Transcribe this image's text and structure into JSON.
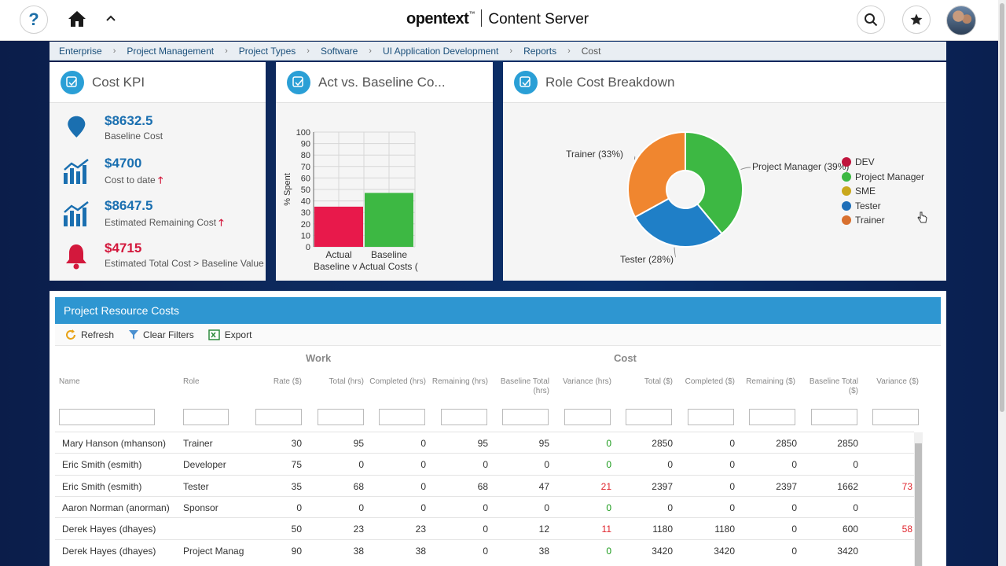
{
  "header": {
    "brand_name": "opentext",
    "brand_tm": "™",
    "product": "Content Server",
    "help_label": "?"
  },
  "breadcrumb": [
    "Enterprise",
    "Project Management",
    "Project Types",
    "Software",
    "UI Application Development",
    "Reports",
    "Cost"
  ],
  "cost_kpi": {
    "title": "Cost KPI",
    "items": [
      {
        "value": "$8632.5",
        "label": "Baseline Cost",
        "icon": "map-pin-icon"
      },
      {
        "value": "$4700",
        "label": "Cost to date",
        "icon": "bar-chart-icon"
      },
      {
        "value": "$8647.5",
        "label": "Estimated Remaining Cost",
        "icon": "bar-chart-icon"
      },
      {
        "value": "$4715",
        "label": "Estimated Total Cost > Baseline Value",
        "icon": "bell-icon"
      }
    ]
  },
  "act_vs_baseline": {
    "title": "Act vs. Baseline Co...",
    "chart_data": {
      "type": "bar",
      "categories": [
        "Actual",
        "Baseline"
      ],
      "values": [
        35,
        47
      ],
      "colors": [
        "#e8194b",
        "#3db843"
      ],
      "ylabel": "% Spent",
      "ylim": [
        0,
        100
      ],
      "yticks": [
        0,
        10,
        20,
        30,
        40,
        50,
        60,
        70,
        80,
        90,
        100
      ],
      "xlabel_line1": "Actual",
      "xlabel_line2": "Baseline",
      "xlabel_line3": "Baseline v Actual Costs ("
    }
  },
  "role_cost": {
    "title": "Role Cost Breakdown",
    "chart_data": {
      "type": "pie",
      "slices": [
        {
          "name": "Project Manager",
          "value": 39,
          "label": "Project Manager (39%)",
          "color": "#3db843"
        },
        {
          "name": "Tester",
          "value": 28,
          "label": "Tester (28%)",
          "color": "#1f7fc7"
        },
        {
          "name": "Trainer",
          "value": 33,
          "label": "Trainer (33%)",
          "color": "#f0862f"
        }
      ],
      "legend": [
        {
          "name": "DEV",
          "color": "#c0143c"
        },
        {
          "name": "Project Manager",
          "color": "#3db843"
        },
        {
          "name": "SME",
          "color": "#c9a81c"
        },
        {
          "name": "Tester",
          "color": "#1f6fb8"
        },
        {
          "name": "Trainer",
          "color": "#d8702e"
        }
      ]
    }
  },
  "grid": {
    "title": "Project Resource Costs",
    "toolbar": {
      "refresh": "Refresh",
      "clear_filters": "Clear Filters",
      "export": "Export"
    },
    "groups": {
      "work": "Work",
      "cost": "Cost"
    },
    "columns": [
      "Name",
      "Role",
      "Rate ($)",
      "Total (hrs)",
      "Completed (hrs)",
      "Remaining (hrs)",
      "Baseline Total (hrs)",
      "Variance (hrs)",
      "Total ($)",
      "Completed ($)",
      "Remaining ($)",
      "Baseline Total ($)",
      "Variance ($)"
    ],
    "rows": [
      {
        "name": "Mary Hanson (mhanson)",
        "role": "Trainer",
        "rate": "30",
        "total_hrs": "95",
        "completed_hrs": "0",
        "remaining_hrs": "95",
        "baseline_hrs": "95",
        "variance_hrs": "0",
        "total_cost": "2850",
        "completed_cost": "0",
        "remaining_cost": "2850",
        "baseline_cost": "2850",
        "variance_cost": ""
      },
      {
        "name": "Eric Smith (esmith)",
        "role": "Developer",
        "rate": "75",
        "total_hrs": "0",
        "completed_hrs": "0",
        "remaining_hrs": "0",
        "baseline_hrs": "0",
        "variance_hrs": "0",
        "total_cost": "0",
        "completed_cost": "0",
        "remaining_cost": "0",
        "baseline_cost": "0",
        "variance_cost": ""
      },
      {
        "name": "Eric Smith (esmith)",
        "role": "Tester",
        "rate": "35",
        "total_hrs": "68",
        "completed_hrs": "0",
        "remaining_hrs": "68",
        "baseline_hrs": "47",
        "variance_hrs": "21",
        "total_cost": "2397",
        "completed_cost": "0",
        "remaining_cost": "2397",
        "baseline_cost": "1662",
        "variance_cost": "73"
      },
      {
        "name": "Aaron Norman (anorman)",
        "role": "Sponsor",
        "rate": "0",
        "total_hrs": "0",
        "completed_hrs": "0",
        "remaining_hrs": "0",
        "baseline_hrs": "0",
        "variance_hrs": "0",
        "total_cost": "0",
        "completed_cost": "0",
        "remaining_cost": "0",
        "baseline_cost": "0",
        "variance_cost": ""
      },
      {
        "name": "Derek Hayes (dhayes)",
        "role": "",
        "rate": "50",
        "total_hrs": "23",
        "completed_hrs": "23",
        "remaining_hrs": "0",
        "baseline_hrs": "12",
        "variance_hrs": "11",
        "total_cost": "1180",
        "completed_cost": "1180",
        "remaining_cost": "0",
        "baseline_cost": "600",
        "variance_cost": "58"
      },
      {
        "name": "Derek Hayes (dhayes)",
        "role": "Project Manag",
        "rate": "90",
        "total_hrs": "38",
        "completed_hrs": "38",
        "remaining_hrs": "0",
        "baseline_hrs": "38",
        "variance_hrs": "0",
        "total_cost": "3420",
        "completed_cost": "3420",
        "remaining_cost": "0",
        "baseline_cost": "3420",
        "variance_cost": ""
      }
    ]
  }
}
